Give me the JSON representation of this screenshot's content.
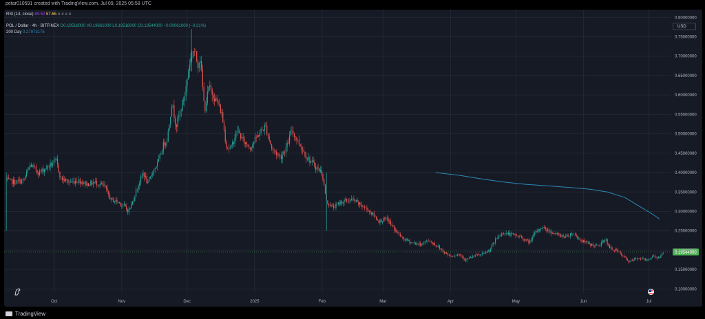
{
  "credit": "petar010591 created with TradingView.com, Jul 09, 2025 05:58 UTC",
  "indicators": {
    "rsi_label": "RSI (14, close)",
    "rsi_value_1": "69.50",
    "rsi_value_2": "57.65",
    "rsi_placeholders": "ø ø ø ø",
    "ticker_line": "POL / Dollar · 4h · BITFINEX",
    "ohlc": {
      "open": "O0.19518000",
      "high": "H0.19661000",
      "low": "L0.19518000",
      "close": "C0.19544000",
      "change": "−0.00061000 (−0.31%)"
    },
    "ma_label": "200 Day",
    "ma_value": "0.27973175"
  },
  "currency_button": "USD",
  "footer": {
    "brand": "TradingView"
  },
  "colors": {
    "up": "#26a69a",
    "down": "#ef5350",
    "ma": "#2e8ab8",
    "price_tag": "#4caf50",
    "bg": "#161a25",
    "axis_text": "#b2b5be"
  },
  "chart_data": {
    "type": "candlestick",
    "symbol": "POL / Dollar",
    "interval": "4h",
    "exchange": "BITFINEX",
    "x_range": [
      "2024-09-08",
      "2025-07-11"
    ],
    "ylim": [
      0.09,
      0.82
    ],
    "y_ticks": [
      "0.10000000",
      "0.15000000",
      "0.20000000",
      "0.25000000",
      "0.30000000",
      "0.35000000",
      "0.40000000",
      "0.45000000",
      "0.50000000",
      "0.55000000",
      "0.60000000",
      "0.65000000",
      "0.70000000",
      "0.75000000",
      "0.80000000"
    ],
    "x_ticks": [
      {
        "date": "2024-10-01",
        "label": "Oct"
      },
      {
        "date": "2024-11-01",
        "label": "Nov"
      },
      {
        "date": "2024-12-01",
        "label": "Dec"
      },
      {
        "date": "2025-01-01",
        "label": "2025"
      },
      {
        "date": "2025-02-01",
        "label": "Feb"
      },
      {
        "date": "2025-03-01",
        "label": "Mar"
      },
      {
        "date": "2025-04-01",
        "label": "Apr"
      },
      {
        "date": "2025-05-01",
        "label": "May"
      },
      {
        "date": "2025-06-01",
        "label": "Jun"
      },
      {
        "date": "2025-07-01",
        "label": "Jul"
      }
    ],
    "last_price": 0.19544,
    "last_price_label": "0.19544000",
    "grid": true,
    "price_path": [
      [
        "2024-09-09",
        0.38
      ],
      [
        "2024-09-13",
        0.375
      ],
      [
        "2024-09-17",
        0.38
      ],
      [
        "2024-09-20",
        0.42
      ],
      [
        "2024-09-24",
        0.4
      ],
      [
        "2024-09-28",
        0.415
      ],
      [
        "2024-10-02",
        0.43
      ],
      [
        "2024-10-04",
        0.385
      ],
      [
        "2024-10-08",
        0.375
      ],
      [
        "2024-10-12",
        0.38
      ],
      [
        "2024-10-16",
        0.37
      ],
      [
        "2024-10-20",
        0.375
      ],
      [
        "2024-10-24",
        0.365
      ],
      [
        "2024-10-27",
        0.33
      ],
      [
        "2024-10-30",
        0.325
      ],
      [
        "2024-11-02",
        0.315
      ],
      [
        "2024-11-04",
        0.3
      ],
      [
        "2024-11-06",
        0.325
      ],
      [
        "2024-11-08",
        0.36
      ],
      [
        "2024-11-11",
        0.4
      ],
      [
        "2024-11-13",
        0.37
      ],
      [
        "2024-11-15",
        0.4
      ],
      [
        "2024-11-18",
        0.43
      ],
      [
        "2024-11-20",
        0.47
      ],
      [
        "2024-11-22",
        0.49
      ],
      [
        "2024-11-24",
        0.58
      ],
      [
        "2024-11-26",
        0.52
      ],
      [
        "2024-11-28",
        0.56
      ],
      [
        "2024-11-30",
        0.6
      ],
      [
        "2024-12-02",
        0.68
      ],
      [
        "2024-12-04",
        0.72
      ],
      [
        "2024-12-06",
        0.68
      ],
      [
        "2024-12-07",
        0.7
      ],
      [
        "2024-12-09",
        0.56
      ],
      [
        "2024-12-11",
        0.62
      ],
      [
        "2024-12-13",
        0.6
      ],
      [
        "2024-12-15",
        0.58
      ],
      [
        "2024-12-17",
        0.55
      ],
      [
        "2024-12-19",
        0.47
      ],
      [
        "2024-12-21",
        0.46
      ],
      [
        "2024-12-24",
        0.51
      ],
      [
        "2024-12-27",
        0.48
      ],
      [
        "2024-12-30",
        0.465
      ],
      [
        "2025-01-03",
        0.5
      ],
      [
        "2025-01-06",
        0.52
      ],
      [
        "2025-01-09",
        0.46
      ],
      [
        "2025-01-13",
        0.44
      ],
      [
        "2025-01-16",
        0.47
      ],
      [
        "2025-01-18",
        0.51
      ],
      [
        "2025-01-21",
        0.48
      ],
      [
        "2025-01-25",
        0.44
      ],
      [
        "2025-01-29",
        0.415
      ],
      [
        "2025-02-01",
        0.4
      ],
      [
        "2025-02-03",
        0.325
      ],
      [
        "2025-02-06",
        0.31
      ],
      [
        "2025-02-10",
        0.325
      ],
      [
        "2025-02-15",
        0.33
      ],
      [
        "2025-02-19",
        0.315
      ],
      [
        "2025-02-23",
        0.3
      ],
      [
        "2025-02-27",
        0.275
      ],
      [
        "2025-03-03",
        0.28
      ],
      [
        "2025-03-06",
        0.255
      ],
      [
        "2025-03-10",
        0.23
      ],
      [
        "2025-03-14",
        0.22
      ],
      [
        "2025-03-18",
        0.215
      ],
      [
        "2025-03-22",
        0.225
      ],
      [
        "2025-03-26",
        0.21
      ],
      [
        "2025-03-29",
        0.195
      ],
      [
        "2025-04-01",
        0.185
      ],
      [
        "2025-04-05",
        0.19
      ],
      [
        "2025-04-08",
        0.175
      ],
      [
        "2025-04-12",
        0.185
      ],
      [
        "2025-04-16",
        0.19
      ],
      [
        "2025-04-19",
        0.2
      ],
      [
        "2025-04-22",
        0.23
      ],
      [
        "2025-04-25",
        0.245
      ],
      [
        "2025-04-29",
        0.24
      ],
      [
        "2025-05-03",
        0.235
      ],
      [
        "2025-05-07",
        0.22
      ],
      [
        "2025-05-10",
        0.245
      ],
      [
        "2025-05-13",
        0.26
      ],
      [
        "2025-05-16",
        0.25
      ],
      [
        "2025-05-20",
        0.24
      ],
      [
        "2025-05-24",
        0.235
      ],
      [
        "2025-05-27",
        0.245
      ],
      [
        "2025-05-31",
        0.225
      ],
      [
        "2025-06-04",
        0.215
      ],
      [
        "2025-06-08",
        0.21
      ],
      [
        "2025-06-11",
        0.23
      ],
      [
        "2025-06-13",
        0.205
      ],
      [
        "2025-06-16",
        0.2
      ],
      [
        "2025-06-19",
        0.185
      ],
      [
        "2025-06-22",
        0.17
      ],
      [
        "2025-06-26",
        0.18
      ],
      [
        "2025-06-30",
        0.175
      ],
      [
        "2025-07-03",
        0.185
      ],
      [
        "2025-07-06",
        0.18
      ],
      [
        "2025-07-08",
        0.195
      ]
    ],
    "moving_average": {
      "name": "200 Day",
      "points": [
        [
          "2025-03-25",
          0.4
        ],
        [
          "2025-04-05",
          0.393
        ],
        [
          "2025-04-15",
          0.384
        ],
        [
          "2025-04-25",
          0.376
        ],
        [
          "2025-05-05",
          0.37
        ],
        [
          "2025-05-15",
          0.366
        ],
        [
          "2025-05-25",
          0.362
        ],
        [
          "2025-06-04",
          0.357
        ],
        [
          "2025-06-12",
          0.35
        ],
        [
          "2025-06-20",
          0.336
        ],
        [
          "2025-06-27",
          0.312
        ],
        [
          "2025-07-03",
          0.292
        ],
        [
          "2025-07-06",
          0.28
        ]
      ]
    }
  }
}
